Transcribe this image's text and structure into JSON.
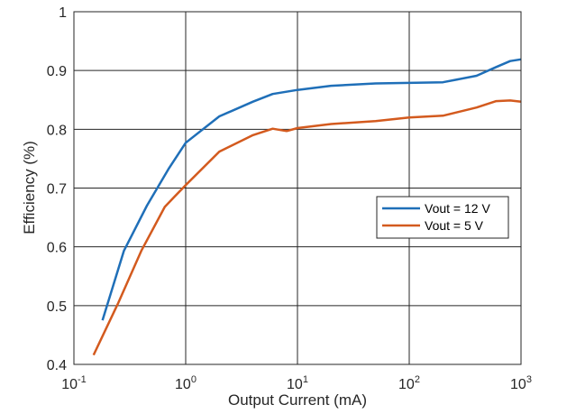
{
  "chart_data": {
    "type": "line",
    "title": "",
    "xlabel": "Output Current (mA)",
    "ylabel": "Efficiency (%)",
    "xscale": "log",
    "xlim": [
      0.1,
      1000
    ],
    "ylim": [
      0.4,
      1.0
    ],
    "grid": true,
    "legend_position": "right",
    "x_ticks": [
      {
        "value": 0.1,
        "base": "10",
        "exp": "-1"
      },
      {
        "value": 1,
        "base": "10",
        "exp": "0"
      },
      {
        "value": 10,
        "base": "10",
        "exp": "1"
      },
      {
        "value": 100,
        "base": "10",
        "exp": "2"
      },
      {
        "value": 1000,
        "base": "10",
        "exp": "3"
      }
    ],
    "y_ticks": [
      {
        "value": 0.4,
        "label": "0.4"
      },
      {
        "value": 0.5,
        "label": "0.5"
      },
      {
        "value": 0.6,
        "label": "0.6"
      },
      {
        "value": 0.7,
        "label": "0.7"
      },
      {
        "value": 0.8,
        "label": "0.8"
      },
      {
        "value": 0.9,
        "label": "0.9"
      },
      {
        "value": 1.0,
        "label": "1"
      }
    ],
    "series": [
      {
        "name": "Vout = 12 V",
        "color": "#1f6fb8",
        "x": [
          0.18,
          0.28,
          0.45,
          0.7,
          1,
          2,
          4,
          6,
          10,
          20,
          50,
          100,
          200,
          400,
          600,
          800,
          1000
        ],
        "y": [
          0.475,
          0.593,
          0.67,
          0.732,
          0.777,
          0.822,
          0.847,
          0.86,
          0.867,
          0.874,
          0.878,
          0.879,
          0.88,
          0.891,
          0.906,
          0.916,
          0.919
        ]
      },
      {
        "name": "Vout = 5 V",
        "color": "#d35a1e",
        "x": [
          0.15,
          0.25,
          0.4,
          0.65,
          0.8,
          1,
          2,
          4,
          6,
          8,
          10,
          20,
          50,
          100,
          200,
          400,
          600,
          800,
          1000
        ],
        "y": [
          0.416,
          0.505,
          0.593,
          0.668,
          0.686,
          0.705,
          0.762,
          0.79,
          0.801,
          0.797,
          0.802,
          0.809,
          0.814,
          0.82,
          0.823,
          0.837,
          0.848,
          0.849,
          0.847
        ]
      }
    ]
  }
}
